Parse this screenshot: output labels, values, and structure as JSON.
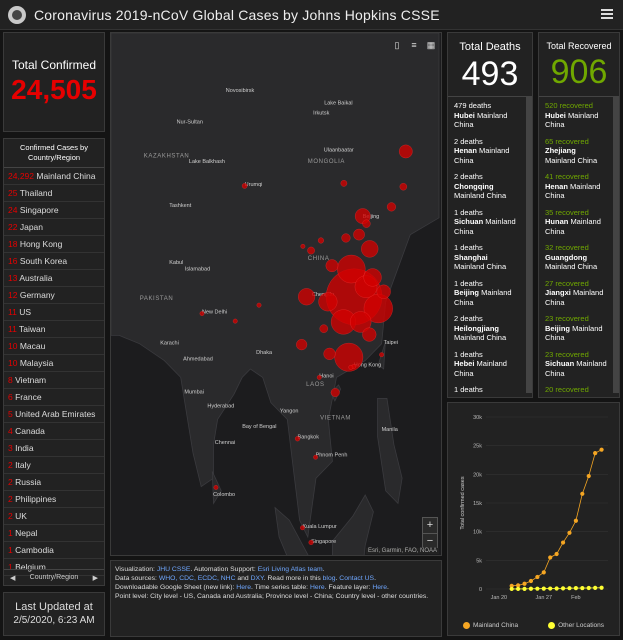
{
  "header": {
    "title": "Coronavirus 2019-nCoV Global Cases by Johns Hopkins CSSE",
    "logo_icon": "globe-icon",
    "menu_icon": "menu-icon"
  },
  "total_confirmed": {
    "label": "Total Confirmed",
    "value": "24,505"
  },
  "confirmed_list": {
    "title": "Confirmed Cases by Country/Region",
    "rows": [
      {
        "v": "24,292",
        "name": "Mainland China"
      },
      {
        "v": "25",
        "name": "Thailand"
      },
      {
        "v": "24",
        "name": "Singapore"
      },
      {
        "v": "22",
        "name": "Japan"
      },
      {
        "v": "18",
        "name": "Hong Kong"
      },
      {
        "v": "16",
        "name": "South Korea"
      },
      {
        "v": "13",
        "name": "Australia"
      },
      {
        "v": "12",
        "name": "Germany"
      },
      {
        "v": "11",
        "name": "US"
      },
      {
        "v": "11",
        "name": "Taiwan"
      },
      {
        "v": "10",
        "name": "Macau"
      },
      {
        "v": "10",
        "name": "Malaysia"
      },
      {
        "v": "8",
        "name": "Vietnam"
      },
      {
        "v": "6",
        "name": "France"
      },
      {
        "v": "5",
        "name": "United Arab Emirates"
      },
      {
        "v": "4",
        "name": "Canada"
      },
      {
        "v": "3",
        "name": "India"
      },
      {
        "v": "2",
        "name": "Italy"
      },
      {
        "v": "2",
        "name": "Russia"
      },
      {
        "v": "2",
        "name": "Philippines"
      },
      {
        "v": "2",
        "name": "UK"
      },
      {
        "v": "1",
        "name": "Nepal"
      },
      {
        "v": "1",
        "name": "Cambodia"
      },
      {
        "v": "1",
        "name": "Belgium"
      }
    ],
    "footer": "Country/Region"
  },
  "last_updated": {
    "label": "Last Updated at",
    "value": "2/5/2020, 6:23 AM"
  },
  "map": {
    "labels": [
      {
        "t": "Novosibirsk"
      },
      {
        "t": "Nur-Sultan"
      },
      {
        "t": "KAZAKHSTAN"
      },
      {
        "t": "Lake Balkhash"
      },
      {
        "t": "MONGOLIA"
      },
      {
        "t": "Ulaanbaatar"
      },
      {
        "t": "Urumqi"
      },
      {
        "t": "Tashkent"
      },
      {
        "t": "Kabul"
      },
      {
        "t": "Islamabad"
      },
      {
        "t": "PAKISTAN"
      },
      {
        "t": "New Delhi"
      },
      {
        "t": "Karachi"
      },
      {
        "t": "Ahmedabad"
      },
      {
        "t": "Mumbai"
      },
      {
        "t": "Hyderabad"
      },
      {
        "t": "Chennai"
      },
      {
        "t": "Bay of Bengal"
      },
      {
        "t": "Colombo"
      },
      {
        "t": "CHINA"
      },
      {
        "t": "Chengdu"
      },
      {
        "t": "Yangon"
      },
      {
        "t": "Bangkok"
      },
      {
        "t": "VIETNAM"
      },
      {
        "t": "Phnom Penh"
      },
      {
        "t": "Hanoi"
      },
      {
        "t": "Kuala Lumpur"
      },
      {
        "t": "Singapore"
      },
      {
        "t": "Jakarta"
      },
      {
        "t": "Manila"
      },
      {
        "t": "Beijing"
      },
      {
        "t": "Hong Kong"
      },
      {
        "t": "INDONESIA"
      },
      {
        "t": "Dhaka"
      },
      {
        "t": "Lake Baikal"
      },
      {
        "t": "LAOS"
      },
      {
        "t": "Taipei"
      },
      {
        "t": "Irkutsk"
      }
    ],
    "attribution": "Esri, Garmin, FAO, NOAA",
    "zoom_in": "+",
    "zoom_out": "−"
  },
  "sources": {
    "p1a": "Visualization: ",
    "p1b": "JHU CSSE",
    "p1c": ". Automation Support: ",
    "p1d": "Esri Living Atlas team",
    "p2a": "Data sources: ",
    "p2b": "WHO, CDC, ECDC, NHC",
    "p2c": " and ",
    "p2d": "DXY",
    "p2e": ". Read more in this ",
    "p2f": "blog",
    "p2g": ". ",
    "p2h": "Contact US",
    "p3a": "Downloadable Google Sheet (new link): ",
    "p3b": "Here",
    "p3c": ". Time series table: ",
    "p3d": "Here",
    "p3e": ". Feature layer: ",
    "p3f": "Here",
    "p4": "Point level: City level - US, Canada and Australia; Province level - China; Country level - other countries."
  },
  "deaths": {
    "label": "Total Deaths",
    "value": "493",
    "items": [
      {
        "n": "479 deaths",
        "p": "Hubei",
        "c": "Mainland China"
      },
      {
        "n": "2 deaths",
        "p": "Henan",
        "c": "Mainland China"
      },
      {
        "n": "2 deaths",
        "p": "Chongqing",
        "c": "Mainland China"
      },
      {
        "n": "1 deaths",
        "p": "Sichuan",
        "c": "Mainland China"
      },
      {
        "n": "1 deaths",
        "p": "Shanghai",
        "c": "Mainland China"
      },
      {
        "n": "1 deaths",
        "p": "Beijing",
        "c": "Mainland China"
      },
      {
        "n": "2 deaths",
        "p": "Heilongjiang",
        "c": "Mainland China"
      },
      {
        "n": "1 deaths",
        "p": "Hebei",
        "c": "Mainland China"
      },
      {
        "n": "1 deaths",
        "p": "Hainan",
        "c": "Mainland China"
      },
      {
        "n": "1 deaths",
        "p": "",
        "c": ""
      }
    ]
  },
  "recovered": {
    "label": "Total Recovered",
    "value": "906",
    "items": [
      {
        "n": "520 recovered",
        "p": "Hubei",
        "c": "Mainland China"
      },
      {
        "n": "65 recovered",
        "p": "Zhejiang",
        "c": "Mainland China"
      },
      {
        "n": "41 recovered",
        "p": "Henan",
        "c": "Mainland China"
      },
      {
        "n": "35 recovered",
        "p": "Hunan",
        "c": "Mainland China"
      },
      {
        "n": "32 recovered",
        "p": "Guangdong",
        "c": "Mainland China"
      },
      {
        "n": "27 recovered",
        "p": "Jiangxi",
        "c": "Mainland China"
      },
      {
        "n": "23 recovered",
        "p": "Beijing",
        "c": "Mainland China"
      },
      {
        "n": "23 recovered",
        "p": "Sichuan",
        "c": "Mainland China"
      },
      {
        "n": "20 recovered",
        "p": "Anhui",
        "c": "Mainland China"
      },
      {
        "n": "14 recovered",
        "p": "",
        "c": ""
      }
    ]
  },
  "chart_data": {
    "type": "line",
    "ylabel": "Total confirmed cases",
    "xlabel": "",
    "ylim": [
      0,
      30000
    ],
    "yticks": [
      "0",
      "5k",
      "10k",
      "15k",
      "20k",
      "25k",
      "30k"
    ],
    "xticks": [
      "Jan 20",
      "Jan 27",
      "Feb"
    ],
    "series": [
      {
        "name": "Mainland China",
        "color": "#f5a623",
        "x": [
          "2020-01-22",
          "2020-01-23",
          "2020-01-24",
          "2020-01-25",
          "2020-01-26",
          "2020-01-27",
          "2020-01-28",
          "2020-01-29",
          "2020-01-30",
          "2020-01-31",
          "2020-02-01",
          "2020-02-02",
          "2020-02-03",
          "2020-02-04",
          "2020-02-05"
        ],
        "values": [
          550,
          640,
          920,
          1400,
          2100,
          2900,
          5500,
          6100,
          8100,
          9800,
          11900,
          16600,
          19700,
          23700,
          24300
        ]
      },
      {
        "name": "Other Locations",
        "color": "#ffff33",
        "x": [
          "2020-01-22",
          "2020-01-23",
          "2020-01-24",
          "2020-01-25",
          "2020-01-26",
          "2020-01-27",
          "2020-01-28",
          "2020-01-29",
          "2020-01-30",
          "2020-01-31",
          "2020-02-01",
          "2020-02-02",
          "2020-02-03",
          "2020-02-04",
          "2020-02-05"
        ],
        "values": [
          10,
          15,
          25,
          40,
          55,
          70,
          80,
          90,
          110,
          140,
          150,
          160,
          180,
          200,
          213
        ]
      }
    ]
  },
  "map_bubbles": [
    {
      "lon": 114.3,
      "lat": 30.6,
      "cases": 16678
    },
    {
      "lon": 120.2,
      "lat": 29.2,
      "cases": 895
    },
    {
      "lon": 113.0,
      "lat": 23.4,
      "cases": 870
    },
    {
      "lon": 113.6,
      "lat": 33.9,
      "cases": 851
    },
    {
      "lon": 111.7,
      "lat": 27.6,
      "cases": 661
    },
    {
      "lon": 117.2,
      "lat": 31.8,
      "cases": 530
    },
    {
      "lon": 115.9,
      "lat": 27.6,
      "cases": 476
    },
    {
      "lon": 107.9,
      "lat": 30.0,
      "cases": 376
    },
    {
      "lon": 118.8,
      "lat": 32.9,
      "cases": 341
    },
    {
      "lon": 102.7,
      "lat": 30.6,
      "cases": 301
    },
    {
      "lon": 118.1,
      "lat": 36.3,
      "cases": 307
    },
    {
      "lon": 116.4,
      "lat": 40.2,
      "cases": 253
    },
    {
      "lon": 121.5,
      "lat": 31.2,
      "cases": 208
    },
    {
      "lon": 118.0,
      "lat": 26.1,
      "cases": 205
    },
    {
      "lon": 108.9,
      "lat": 34.3,
      "cases": 165
    },
    {
      "lon": 108.3,
      "lat": 23.8,
      "cases": 150
    },
    {
      "lon": 115.5,
      "lat": 38.0,
      "cases": 135
    },
    {
      "lon": 126.9,
      "lat": 47.9,
      "cases": 190
    },
    {
      "lon": 109.7,
      "lat": 19.2,
      "cases": 79
    },
    {
      "lon": 112.3,
      "lat": 37.6,
      "cases": 81
    },
    {
      "lon": 123.4,
      "lat": 41.3,
      "cases": 81
    },
    {
      "lon": 101.5,
      "lat": 24.9,
      "cases": 124
    },
    {
      "lon": 106.9,
      "lat": 26.8,
      "cases": 71
    },
    {
      "lon": 117.3,
      "lat": 39.3,
      "cases": 67
    },
    {
      "lon": 103.8,
      "lat": 36.1,
      "cases": 57
    },
    {
      "lon": 106.2,
      "lat": 37.3,
      "cases": 34
    },
    {
      "lon": 111.8,
      "lat": 44.1,
      "cases": 42
    },
    {
      "lon": 87.6,
      "lat": 43.8,
      "cases": 29
    },
    {
      "lon": 126.3,
      "lat": 43.7,
      "cases": 54
    },
    {
      "lon": 101.8,
      "lat": 36.6,
      "cases": 15
    },
    {
      "lon": 114.2,
      "lat": 22.3,
      "cases": 18
    },
    {
      "lon": 113.5,
      "lat": 22.2,
      "cases": 10
    },
    {
      "lon": 121.0,
      "lat": 23.7,
      "cases": 11
    },
    {
      "lon": 100.5,
      "lat": 13.7,
      "cases": 25
    },
    {
      "lon": 103.8,
      "lat": 1.35,
      "cases": 24
    },
    {
      "lon": 105.8,
      "lat": 21.0,
      "cases": 8
    },
    {
      "lon": 101.7,
      "lat": 3.1,
      "cases": 10
    },
    {
      "lon": 85.3,
      "lat": 27.7,
      "cases": 1
    },
    {
      "lon": 104.9,
      "lat": 11.5,
      "cases": 1
    },
    {
      "lon": 77.2,
      "lat": 28.6,
      "cases": 3
    },
    {
      "lon": 91.1,
      "lat": 29.6,
      "cases": 1
    },
    {
      "lon": 80.6,
      "lat": 7.9,
      "cases": 1
    }
  ],
  "colors": {
    "accent_red": "#e60000",
    "recovered_green": "#70a800",
    "panel": "#222222",
    "map_bg": "#1c1c1e",
    "land": "#2a2a2c"
  }
}
